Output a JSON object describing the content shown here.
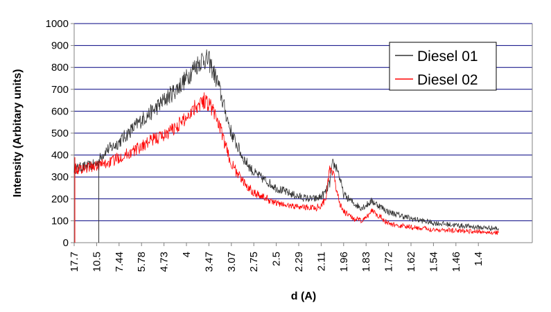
{
  "chart_data": {
    "type": "line",
    "title": "",
    "xlabel": "d (A)",
    "ylabel": "Intensity (Arbitary units)",
    "ylim": [
      0,
      1000
    ],
    "yticks": [
      0,
      100,
      200,
      300,
      400,
      500,
      600,
      700,
      800,
      900,
      1000
    ],
    "x_ticks": [
      "17.7",
      "10.5",
      "7.44",
      "5.78",
      "4.73",
      "4",
      "3.47",
      "3.07",
      "2.75",
      "2.5",
      "2.29",
      "2.11",
      "1.96",
      "1.83",
      "1.72",
      "1.62",
      "1.54",
      "1.46",
      "1.4"
    ],
    "grid": "horizontal",
    "legend_position": "top-right",
    "series": [
      {
        "name": "Diesel 01",
        "color": "#333333",
        "x": [
          17.7,
          16,
          14,
          12,
          10.5,
          10,
          9,
          8,
          7.44,
          6.5,
          5.78,
          5.2,
          4.73,
          4.3,
          4,
          3.8,
          3.6,
          3.47,
          3.3,
          3.2,
          3.07,
          2.9,
          2.75,
          2.6,
          2.5,
          2.4,
          2.29,
          2.2,
          2.15,
          2.11,
          2.08,
          2.05,
          2.03,
          2.0,
          1.98,
          1.96,
          1.9,
          1.86,
          1.83,
          1.8,
          1.72,
          1.62,
          1.54,
          1.46,
          1.4,
          1.35
        ],
        "values": [
          340,
          340,
          345,
          350,
          360,
          380,
          420,
          440,
          460,
          510,
          560,
          600,
          650,
          700,
          750,
          800,
          840,
          830,
          730,
          630,
          500,
          390,
          320,
          280,
          250,
          230,
          210,
          200,
          200,
          210,
          230,
          270,
          360,
          340,
          280,
          220,
          180,
          160,
          170,
          190,
          140,
          110,
          90,
          80,
          70,
          65
        ]
      },
      {
        "name": "Diesel 02",
        "color": "#ff0000",
        "x": [
          17.7,
          16,
          14,
          12,
          10.5,
          10,
          9,
          8,
          7.44,
          6.5,
          5.78,
          5.2,
          4.73,
          4.3,
          4,
          3.8,
          3.6,
          3.47,
          3.3,
          3.2,
          3.07,
          2.9,
          2.75,
          2.6,
          2.5,
          2.4,
          2.29,
          2.2,
          2.15,
          2.11,
          2.08,
          2.05,
          2.03,
          2.0,
          1.98,
          1.96,
          1.9,
          1.86,
          1.83,
          1.8,
          1.72,
          1.62,
          1.54,
          1.46,
          1.4,
          1.35
        ],
        "values": [
          340,
          335,
          340,
          345,
          350,
          355,
          360,
          375,
          390,
          410,
          440,
          470,
          490,
          530,
          570,
          620,
          650,
          640,
          560,
          470,
          360,
          280,
          230,
          200,
          180,
          170,
          165,
          160,
          160,
          170,
          200,
          330,
          320,
          230,
          170,
          140,
          110,
          100,
          110,
          150,
          85,
          70,
          60,
          55,
          50,
          45
        ]
      }
    ]
  }
}
